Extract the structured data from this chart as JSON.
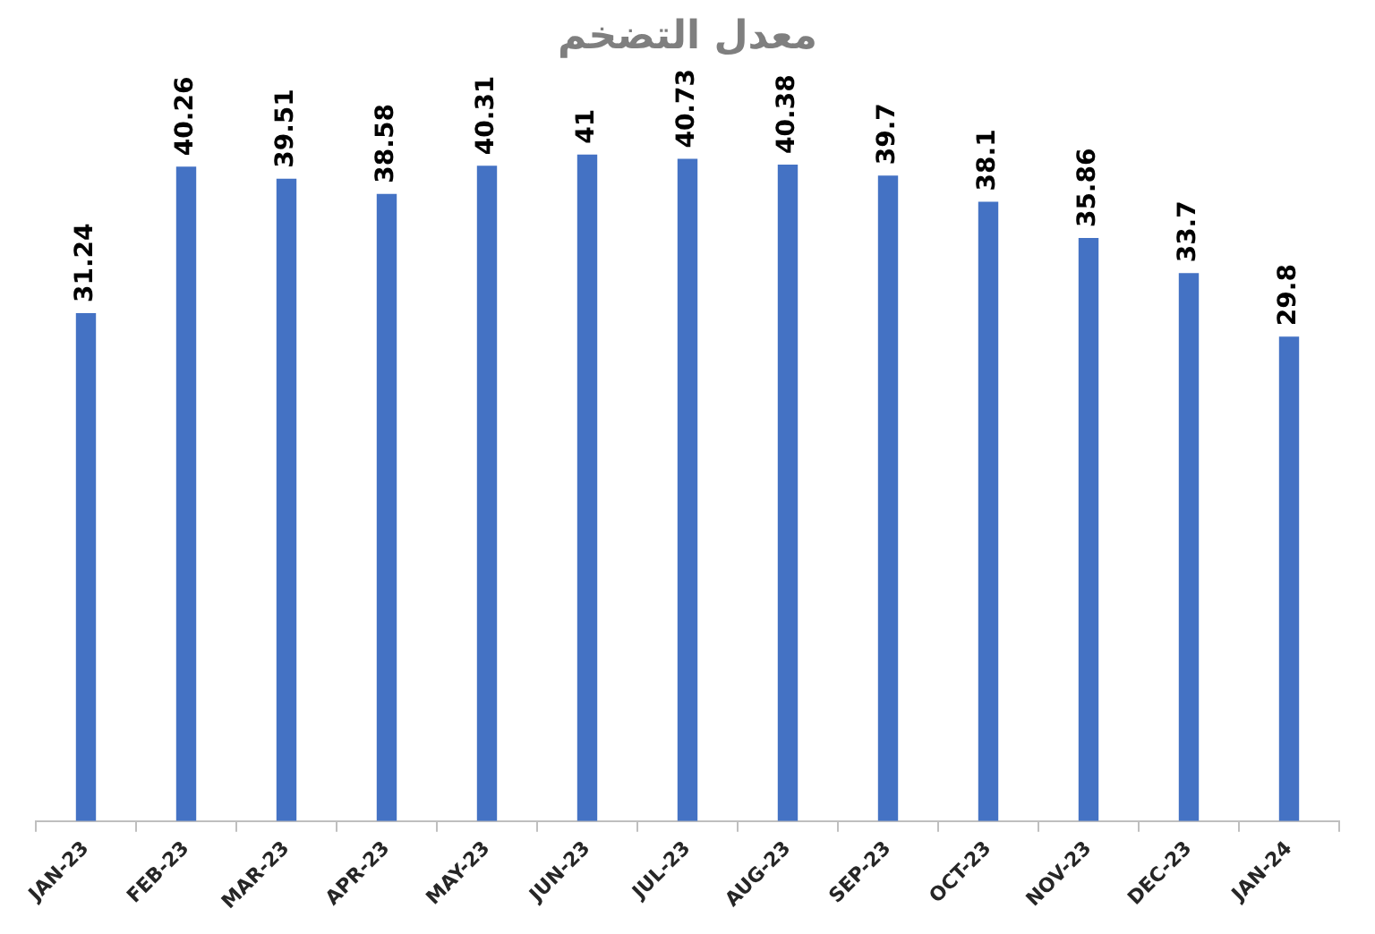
{
  "chart_data": {
    "type": "bar",
    "title": "معدل التضخم",
    "categories": [
      "JAN-23",
      "FEB-23",
      "MAR-23",
      "APR-23",
      "MAY-23",
      "JUN-23",
      "JUL-23",
      "AUG-23",
      "SEP-23",
      "OCT-23",
      "NOV-23",
      "DEC-23",
      "JAN-24"
    ],
    "values": [
      31.24,
      40.26,
      39.51,
      38.58,
      40.31,
      41,
      40.73,
      40.38,
      39.7,
      38.1,
      35.86,
      33.7,
      29.8
    ],
    "color": "#4472c4",
    "data_labels": true,
    "tick_labels": "x",
    "legend": false,
    "grid": false
  }
}
